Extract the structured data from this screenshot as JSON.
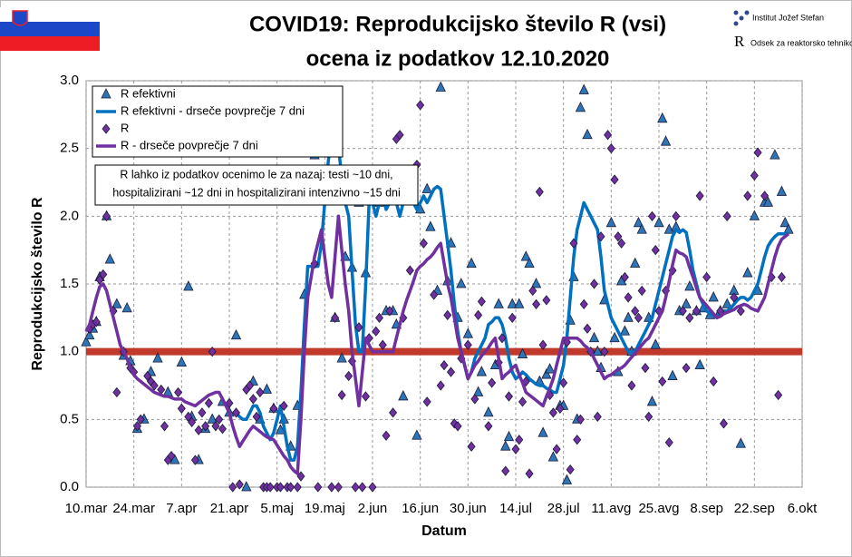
{
  "chart_data": {
    "type": "line",
    "title": "COVID19: Reprodukcijsko število R (vsi)",
    "subtitle": "ocena iz podatkov 12.10.2020",
    "logo_texts": [
      "Institut Jožef Stefan",
      "Odsek za reaktorsko tehniko"
    ],
    "y_label": "Reprodukcijsko število R",
    "x_label": "Datum",
    "annotation": [
      "R lahko iz podatkov ocenimo le za nazaj: testi ~10 dni,",
      "hospitalizirani ~12 dni in hospitalizirani intenzivno ~15 dni"
    ],
    "ylim": [
      0,
      3
    ],
    "yticks": [
      {
        "value": 0,
        "label": "0.0"
      },
      {
        "value": 0.5,
        "label": "0.5"
      },
      {
        "value": 1,
        "label": "1.0"
      },
      {
        "value": 1.5,
        "label": "1.5"
      },
      {
        "value": 2,
        "label": "2.0"
      },
      {
        "value": 2.5,
        "label": "2.5"
      },
      {
        "value": 3,
        "label": "3.0"
      }
    ],
    "grid": true,
    "reference_line": {
      "value": 1,
      "color": "#c0392b"
    },
    "categories": [
      "10.mar",
      null,
      null,
      null,
      null,
      null,
      null,
      null,
      null,
      null,
      null,
      null,
      null,
      null,
      "24.mar",
      null,
      null,
      null,
      null,
      null,
      null,
      null,
      null,
      null,
      null,
      null,
      null,
      null,
      "7.apr",
      null,
      null,
      null,
      null,
      null,
      null,
      null,
      null,
      null,
      null,
      null,
      null,
      null,
      "21.apr",
      null,
      null,
      null,
      null,
      null,
      null,
      null,
      null,
      null,
      null,
      null,
      null,
      null,
      "5.maj",
      null,
      null,
      null,
      null,
      null,
      null,
      null,
      null,
      null,
      null,
      null,
      null,
      null,
      "19.maj",
      null,
      null,
      null,
      null,
      null,
      null,
      null,
      null,
      null,
      null,
      null,
      null,
      null,
      "2.jun",
      null,
      null,
      null,
      null,
      null,
      null,
      null,
      null,
      null,
      null,
      null,
      null,
      null,
      "16.jun",
      null,
      null,
      null,
      null,
      null,
      null,
      null,
      null,
      null,
      null,
      null,
      null,
      null,
      "30.jun",
      null,
      null,
      null,
      null,
      null,
      null,
      null,
      null,
      null,
      null,
      null,
      null,
      null,
      "14.jul",
      null,
      null,
      null,
      null,
      null,
      null,
      null,
      null,
      null,
      null,
      null,
      null,
      null,
      "28.jul",
      null,
      null,
      null,
      null,
      null,
      null,
      null,
      null,
      null,
      null,
      null,
      null,
      null,
      "11.avg",
      null,
      null,
      null,
      null,
      null,
      null,
      null,
      null,
      null,
      null,
      null,
      null,
      null,
      "25.avg",
      null,
      null,
      null,
      null,
      null,
      null,
      null,
      null,
      null,
      null,
      null,
      null,
      null,
      "8.sep",
      null,
      null,
      null,
      null,
      null,
      null,
      null,
      null,
      null,
      null,
      null,
      null,
      null,
      "22.sep",
      null,
      null,
      null,
      null,
      null,
      null,
      null,
      null,
      null,
      null,
      null,
      null,
      null,
      "6.okt"
    ],
    "series": [
      {
        "name": "R efektivni",
        "type": "scatter",
        "marker": "triangle",
        "color": "#2e75b6",
        "values": [
          1.07,
          1.12,
          1.17,
          1.22,
          1.55,
          null,
          2.0,
          1.68,
          null,
          1.35,
          null,
          0.97,
          1.32,
          0.93,
          null,
          0.43,
          null,
          0.5,
          null,
          0.85,
          null,
          0.95,
          null,
          null,
          0.7,
          null,
          0.2,
          null,
          0.92,
          null,
          1.48,
          0.52,
          null,
          0.2,
          null,
          0.43,
          null,
          0.5,
          null,
          null,
          0.63,
          null,
          0.55,
          null,
          1.12,
          null,
          null,
          0.0,
          null,
          0.78,
          null,
          0.5,
          null,
          0.72,
          null,
          0.58,
          null,
          0.42,
          0.5,
          null,
          0.3,
          null,
          0.6,
          null,
          1.42,
          null,
          null,
          2.45,
          null,
          2.6,
          null,
          2.9,
          null,
          1.25,
          null,
          0.95,
          1.7,
          null,
          1.62,
          null,
          2.1,
          null,
          1.58,
          null,
          2.15,
          null,
          2.1,
          null,
          1.3,
          null,
          1.3,
          1.2,
          null,
          0.67,
          null,
          2.3,
          null,
          0.38,
          2.05,
          null,
          2.2,
          1.92,
          null,
          1.45,
          2.95,
          null,
          1.52,
          1.8,
          null,
          1.25,
          1.5,
          null,
          1.13,
          1.65,
          null,
          0.7,
          0.85,
          null,
          0.55,
          null,
          0.9,
          1.35,
          null,
          0.3,
          0.37,
          1.35,
          null,
          1.35,
          0.98,
          1.7,
          1.65,
          null,
          1.5,
          0.78,
          0.4,
          0.83,
          0.87,
          0.22,
          null,
          0.6,
          0.6,
          0.05,
          1.23,
          1.55,
          0.5,
          2.8,
          2.93,
          2.6,
          null,
          1.1,
          1.0,
          0.88,
          1.38,
          null,
          1.95,
          1.1,
          0.85,
          1.52,
          1.15,
          1.25,
          1.0,
          1.65,
          1.95,
          1.9,
          null,
          1.25,
          0.63,
          1.05,
          1.95,
          2.72,
          2.55,
          1.9,
          0.82,
          1.92,
          1.3,
          null,
          1.35,
          1.48,
          null,
          1.3,
          0.9,
          1.32,
          null,
          1.27,
          1.4,
          null,
          1.3,
          null,
          1.35,
          null,
          1.45,
          null,
          0.32,
          null,
          1.58,
          null,
          2.0,
          1.45,
          null,
          2.1,
          2.1,
          null,
          2.45,
          null,
          2.18,
          1.95,
          1.9,
          null,
          null,
          null,
          null
        ]
      },
      {
        "name": "R efektivni - drseče povprečje 7 dni",
        "type": "line",
        "color": "#0070c0",
        "values": [
          null,
          null,
          null,
          null,
          null,
          null,
          null,
          null,
          null,
          null,
          null,
          null,
          null,
          null,
          null,
          null,
          null,
          null,
          null,
          null,
          null,
          null,
          null,
          null,
          null,
          null,
          null,
          null,
          null,
          null,
          null,
          null,
          null,
          null,
          null,
          null,
          null,
          null,
          null,
          null,
          null,
          null,
          null,
          0.55,
          0.55,
          0.52,
          0.5,
          0.5,
          0.55,
          0.6,
          0.6,
          0.55,
          0.45,
          0.4,
          0.35,
          0.4,
          0.5,
          0.6,
          0.45,
          0.3,
          0.2,
          0.2,
          0.3,
          0.7,
          1.2,
          1.63,
          1.63,
          1.63,
          1.63,
          1.8,
          2.1,
          2.4,
          2.6,
          2.6,
          2.5,
          2.3,
          2.1,
          2.0,
          1.6,
          1.2,
          1.0,
          1.0,
          1.5,
          2.1,
          2.1,
          2.0,
          2.1,
          2.15,
          2.05,
          2.1,
          2.15,
          2.1,
          2.0,
          2.1,
          2.15,
          2.2,
          2.1,
          2.05,
          2.1,
          2.15,
          2.1,
          2.15,
          2.2,
          2.22,
          2.2,
          2.0,
          1.8,
          1.6,
          1.35,
          1.15,
          1.0,
          0.9,
          0.8,
          0.85,
          0.95,
          1.0,
          1.05,
          1.1,
          1.2,
          1.22,
          1.25,
          1.25,
          1.2,
          1.1,
          0.95,
          0.85,
          0.8,
          0.82,
          0.85,
          0.83,
          0.8,
          0.78,
          0.76,
          0.75,
          0.75,
          0.73,
          0.72,
          0.7,
          0.7,
          0.8,
          0.9,
          1.1,
          1.4,
          1.7,
          1.9,
          2.0,
          2.1,
          2.05,
          2.0,
          1.95,
          1.9,
          1.7,
          1.45,
          1.35,
          1.25,
          1.2,
          1.15,
          1.1,
          1.05,
          1.0,
          1.0,
          1.0,
          1.05,
          1.1,
          1.15,
          1.2,
          1.25,
          1.35,
          1.45,
          1.55,
          1.65,
          1.75,
          1.85,
          1.9,
          1.88,
          1.9,
          1.88,
          1.75,
          1.6,
          1.5,
          1.4,
          1.35,
          1.3,
          1.28,
          1.27,
          1.25,
          1.28,
          1.3,
          1.3,
          1.32,
          1.35,
          1.38,
          1.4,
          1.4,
          1.38,
          1.4,
          1.45,
          1.5,
          1.6,
          1.7,
          1.78,
          1.82,
          1.85,
          1.87,
          1.87,
          1.87,
          1.87,
          null,
          null,
          null,
          null
        ]
      },
      {
        "name": "R",
        "type": "scatter",
        "marker": "diamond",
        "color": "#7030a0",
        "values": [
          null,
          1.17,
          1.2,
          1.22,
          1.53,
          1.57,
          2.0,
          null,
          1.3,
          0.7,
          null,
          1.0,
          null,
          0.88,
          0.85,
          0.45,
          0.5,
          null,
          0.82,
          0.78,
          0.75,
          null,
          0.72,
          0.45,
          0.2,
          0.23,
          null,
          0.7,
          0.58,
          null,
          0.52,
          0.48,
          0.2,
          0.42,
          0.55,
          0.45,
          0.62,
          1.0,
          0.45,
          0.5,
          0.43,
          null,
          0.62,
          0.0,
          0.55,
          0.02,
          null,
          0.72,
          0.75,
          0.65,
          0.52,
          0.7,
          0.0,
          0.0,
          0.0,
          0.58,
          0.0,
          0.0,
          0.6,
          0.0,
          0.0,
          null,
          0.0,
          0.08,
          null,
          null,
          null,
          1.65,
          0.0,
          null,
          2.3,
          null,
          0.0,
          1.25,
          0.0,
          0.68,
          null,
          0.82,
          0.93,
          0.0,
          1.18,
          0.0,
          0.67,
          1.1,
          0.0,
          1.15,
          1.25,
          1.05,
          0.38,
          1.3,
          0.55,
          2.57,
          2.6,
          1.25,
          null,
          1.6,
          null,
          2.38,
          2.82,
          1.8,
          0.63,
          null,
          1.42,
          null,
          0.75,
          0.9,
          1.27,
          0.85,
          0.47,
          0.45,
          0.95,
          null,
          1.05,
          0.3,
          0.65,
          1.27,
          1.37,
          null,
          0.45,
          0.77,
          null,
          0.92,
          1.1,
          0.12,
          0.67,
          1.25,
          0.28,
          0.35,
          0.63,
          0.78,
          0.1,
          1.45,
          1.35,
          2.18,
          1.05,
          1.38,
          0.68,
          0.55,
          0.28,
          0.58,
          0.77,
          1.07,
          0.13,
          1.8,
          0.35,
          0.5,
          1.35,
          1.17,
          1.0,
          1.5,
          0.52,
          1.85,
          1.0,
          2.6,
          2.5,
          2.27,
          1.85,
          1.8,
          1.55,
          1.4,
          0.75,
          1.3,
          1.25,
          1.45,
          0.88,
          0.52,
          2.0,
          1.75,
          1.3,
          0.78,
          1.45,
          0.33,
          1.6,
          2.0,
          null,
          1.3,
          0.88,
          1.25,
          null,
          1.3,
          2.15,
          null,
          1.55,
          null,
          0.78,
          null,
          1.3,
          0.47,
          2.0,
          null,
          1.4,
          null,
          1.3,
          null,
          2.15,
          null,
          2.3,
          2.47,
          null,
          2.15,
          null,
          1.55,
          null,
          0.68,
          1.55,
          null,
          null,
          null,
          null,
          null,
          null
        ]
      },
      {
        "name": "R - drseče povprečje 7 dni",
        "type": "line",
        "color": "#7030a0",
        "values": [
          1.15,
          1.2,
          1.3,
          1.4,
          1.48,
          1.5,
          1.45,
          1.35,
          1.25,
          1.15,
          1.05,
          1.0,
          0.95,
          0.88,
          0.83,
          0.8,
          0.78,
          0.76,
          0.74,
          0.72,
          0.7,
          0.69,
          0.68,
          0.67,
          0.67,
          0.66,
          0.65,
          0.65,
          0.65,
          0.63,
          0.62,
          0.61,
          0.6,
          0.62,
          0.64,
          0.66,
          0.68,
          0.69,
          0.7,
          0.7,
          0.65,
          0.6,
          0.55,
          0.45,
          0.37,
          0.3,
          0.34,
          0.38,
          0.42,
          0.45,
          0.43,
          0.41,
          0.39,
          0.37,
          0.36,
          0.35,
          0.31,
          0.27,
          0.23,
          0.2,
          0.15,
          0.12,
          0.1,
          0.5,
          1.0,
          1.4,
          1.55,
          1.7,
          1.8,
          1.9,
          1.7,
          1.5,
          1.4,
          1.7,
          2.0,
          1.75,
          1.5,
          1.3,
          1.0,
          0.8,
          0.6,
          0.85,
          1.1,
          1.05,
          1.0,
          1.0,
          1.0,
          1.0,
          1.0,
          1.0,
          1.0,
          1.1,
          1.2,
          1.3,
          1.38,
          1.45,
          1.52,
          1.6,
          1.63,
          1.65,
          1.68,
          1.7,
          1.73,
          1.77,
          1.8,
          1.65,
          1.5,
          1.4,
          1.25,
          1.1,
          1.0,
          0.9,
          0.8,
          0.85,
          0.9,
          0.93,
          0.97,
          1.0,
          1.03,
          1.07,
          1.1,
          0.95,
          0.8,
          0.83,
          0.85,
          0.88,
          0.9,
          0.83,
          0.77,
          0.7,
          0.68,
          0.66,
          0.64,
          0.62,
          0.6,
          0.67,
          0.73,
          0.8,
          0.9,
          1.0,
          1.1,
          1.1,
          1.1,
          1.1,
          1.1,
          1.08,
          1.05,
          1.03,
          1.0,
          0.95,
          0.9,
          0.85,
          0.8,
          0.82,
          0.83,
          0.85,
          0.87,
          0.88,
          0.9,
          0.93,
          0.96,
          0.99,
          1.02,
          1.05,
          1.08,
          1.1,
          1.15,
          1.2,
          1.25,
          1.3,
          1.4,
          1.52,
          1.64,
          1.75,
          1.73,
          1.72,
          1.7,
          1.62,
          1.55,
          1.47,
          1.4,
          1.37,
          1.34,
          1.31,
          1.28,
          1.25,
          1.26,
          1.28,
          1.29,
          1.3,
          1.31,
          1.33,
          1.34,
          1.35,
          1.34,
          1.32,
          1.31,
          1.3,
          1.35,
          1.4,
          1.5,
          1.6,
          1.7,
          1.78,
          1.83,
          1.85,
          1.87,
          null,
          null,
          null,
          null
        ]
      }
    ]
  }
}
